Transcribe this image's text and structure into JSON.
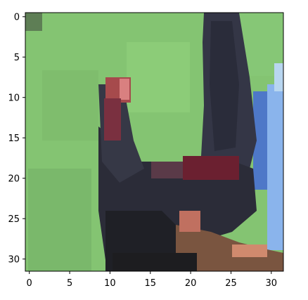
{
  "figure": {
    "subject": "pixelated rooster on green grass",
    "colors": {
      "axis_frame": "#000000",
      "tick_text": "#000000",
      "grass": "#84c472",
      "bird_dark": "#2b2c38",
      "comb_red": "#a64a4c",
      "wattle_red": "#6b2030",
      "blue_object": "#4e78c8",
      "light_blue_object": "#8ab4ec",
      "brown_ground": "#7a5540",
      "salmon_patch": "#d08a6e"
    },
    "icons": [
      "rooster-image"
    ]
  },
  "axes": {
    "x_ticks": [
      "0",
      "5",
      "10",
      "15",
      "20",
      "25",
      "30"
    ],
    "y_ticks": [
      "0",
      "5",
      "10",
      "15",
      "20",
      "25",
      "30"
    ],
    "x_range": [
      -0.5,
      31.5
    ],
    "y_range": [
      -0.5,
      31.5
    ],
    "y_direction": "top-to-bottom"
  }
}
